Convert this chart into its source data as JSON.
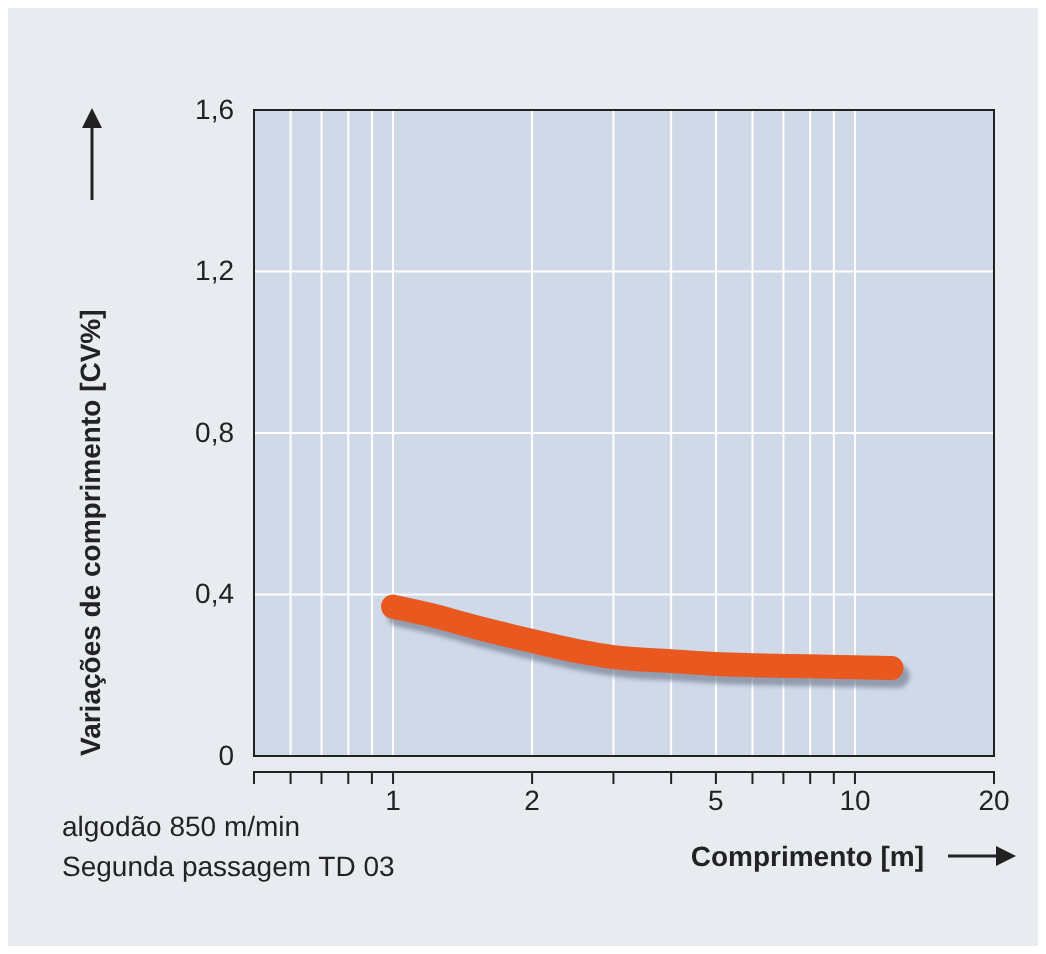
{
  "chart_data": {
    "type": "line",
    "xlabel": "Comprimento [m]",
    "ylabel": "Variações de comprimento [CV%]",
    "x": [
      1,
      1.2,
      1.5,
      2,
      2.5,
      3,
      4,
      5,
      6,
      8,
      10,
      12
    ],
    "series": [
      {
        "color": "#e8581f",
        "values": [
          0.37,
          0.35,
          0.32,
          0.285,
          0.26,
          0.245,
          0.235,
          0.228,
          0.225,
          0.222,
          0.22,
          0.218
        ]
      }
    ],
    "log": "x",
    "xlim": [
      0.5,
      20
    ],
    "xticks": [
      {
        "value": 0.5,
        "label": null
      },
      {
        "value": 0.6,
        "label": null
      },
      {
        "value": 0.7,
        "label": null
      },
      {
        "value": 0.8,
        "label": null
      },
      {
        "value": 0.9,
        "label": null
      },
      1,
      2,
      {
        "value": 3,
        "label": null
      },
      {
        "value": 4,
        "label": null
      },
      5,
      {
        "value": 6,
        "label": null
      },
      {
        "value": 7,
        "label": null
      },
      {
        "value": 8,
        "label": null
      },
      {
        "value": 9,
        "label": null
      },
      10,
      20
    ],
    "ylim": [
      0,
      1.6
    ],
    "yticks": [
      0,
      {
        "value": 0.4,
        "label": "0,4"
      },
      {
        "value": 0.8,
        "label": "0,8"
      },
      {
        "value": 1.2,
        "label": "1,2"
      },
      {
        "value": 1.6,
        "label": "1,6"
      }
    ],
    "grid": true,
    "line_style": "solid",
    "annotations": [
      "algodão 850 m/min",
      "Segunda passagem TD 03"
    ]
  }
}
